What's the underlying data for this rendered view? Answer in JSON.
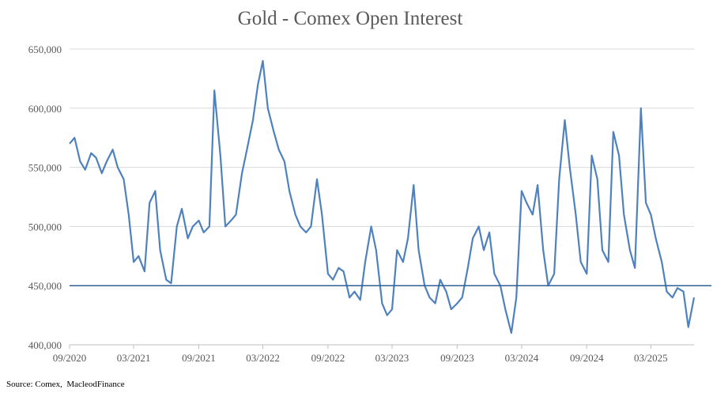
{
  "chart_data": {
    "type": "line",
    "title": "Gold - Comex Open Interest",
    "source": "Source: Comex,  MacleodFinance",
    "xlabel": "",
    "ylabel": "",
    "ylim": [
      400000,
      650000
    ],
    "yticks": [
      400000,
      450000,
      500000,
      550000,
      600000,
      650000
    ],
    "ytick_labels": [
      "400,000",
      "450,000",
      "500,000",
      "550,000",
      "600,000",
      "650,000"
    ],
    "xlim": [
      "2020-09",
      "2025-07"
    ],
    "xticks": [
      "2020-09",
      "2021-03",
      "2021-09",
      "2022-03",
      "2022-09",
      "2023-03",
      "2023-09",
      "2024-03",
      "2024-09",
      "2025-03"
    ],
    "xtick_labels": [
      "09/2020",
      "03/2021",
      "09/2021",
      "03/2022",
      "09/2022",
      "03/2023",
      "09/2023",
      "03/2024",
      "09/2024",
      "03/2025"
    ],
    "grid": "horizontal",
    "colors": {
      "line": "#4f81bd",
      "reference": "#2e6095",
      "grid": "#d9d9d9",
      "axis": "#bfbfbf",
      "tick_text": "#595959"
    },
    "reference_line": {
      "y": 450000
    },
    "series": [
      {
        "x": [
          "2020-09-01",
          "2020-09-15",
          "2020-10-01",
          "2020-10-15",
          "2020-11-01",
          "2020-11-15",
          "2020-12-01",
          "2020-12-15",
          "2021-01-01",
          "2021-01-15",
          "2021-02-01",
          "2021-02-15",
          "2021-03-01",
          "2021-03-15",
          "2021-04-01",
          "2021-04-15",
          "2021-05-01",
          "2021-05-15",
          "2021-06-01",
          "2021-06-15",
          "2021-07-01",
          "2021-07-15",
          "2021-08-01",
          "2021-08-15",
          "2021-09-01",
          "2021-09-15",
          "2021-10-01",
          "2021-10-15",
          "2021-11-01",
          "2021-11-15",
          "2021-12-01",
          "2021-12-15",
          "2022-01-01",
          "2022-01-15",
          "2022-02-01",
          "2022-02-15",
          "2022-03-01",
          "2022-03-15",
          "2022-04-01",
          "2022-04-15",
          "2022-05-01",
          "2022-05-15",
          "2022-06-01",
          "2022-06-15",
          "2022-07-01",
          "2022-07-15",
          "2022-08-01",
          "2022-08-15",
          "2022-09-01",
          "2022-09-15",
          "2022-10-01",
          "2022-10-15",
          "2022-11-01",
          "2022-11-15",
          "2022-12-01",
          "2022-12-15",
          "2023-01-01",
          "2023-01-15",
          "2023-02-01",
          "2023-02-15",
          "2023-03-01",
          "2023-03-15",
          "2023-04-01",
          "2023-04-15",
          "2023-05-01",
          "2023-05-15",
          "2023-06-01",
          "2023-06-15",
          "2023-07-01",
          "2023-07-15",
          "2023-08-01",
          "2023-08-15",
          "2023-09-01",
          "2023-09-15",
          "2023-10-01",
          "2023-10-15",
          "2023-11-01",
          "2023-11-15",
          "2023-12-01",
          "2023-12-15",
          "2024-01-01",
          "2024-01-15",
          "2024-02-01",
          "2024-02-15",
          "2024-03-01",
          "2024-03-15",
          "2024-04-01",
          "2024-04-15",
          "2024-05-01",
          "2024-05-15",
          "2024-06-01",
          "2024-06-15",
          "2024-07-01",
          "2024-07-15",
          "2024-08-01",
          "2024-08-15",
          "2024-09-01",
          "2024-09-15",
          "2024-10-01",
          "2024-10-15",
          "2024-11-01",
          "2024-11-15",
          "2024-12-01",
          "2024-12-15",
          "2025-01-01",
          "2025-01-15",
          "2025-02-01",
          "2025-02-15",
          "2025-03-01",
          "2025-03-15",
          "2025-04-01",
          "2025-04-15",
          "2025-05-01",
          "2025-05-15",
          "2025-06-01",
          "2025-06-15",
          "2025-07-01"
        ],
        "values": [
          570000,
          575000,
          555000,
          548000,
          562000,
          558000,
          545000,
          555000,
          565000,
          550000,
          540000,
          510000,
          470000,
          475000,
          462000,
          520000,
          530000,
          480000,
          455000,
          452000,
          500000,
          515000,
          490000,
          500000,
          505000,
          495000,
          500000,
          615000,
          560000,
          500000,
          505000,
          510000,
          545000,
          565000,
          590000,
          620000,
          640000,
          600000,
          580000,
          565000,
          555000,
          530000,
          510000,
          500000,
          495000,
          500000,
          540000,
          510000,
          460000,
          455000,
          465000,
          462000,
          440000,
          445000,
          438000,
          470000,
          500000,
          480000,
          435000,
          425000,
          430000,
          480000,
          470000,
          490000,
          535000,
          480000,
          450000,
          440000,
          435000,
          455000,
          445000,
          430000,
          435000,
          440000,
          465000,
          490000,
          500000,
          480000,
          495000,
          460000,
          450000,
          430000,
          410000,
          440000,
          530000,
          520000,
          510000,
          535000,
          480000,
          450000,
          460000,
          540000,
          590000,
          550000,
          510000,
          470000,
          460000,
          560000,
          540000,
          480000,
          470000,
          580000,
          560000,
          510000,
          480000,
          465000,
          600000,
          520000,
          510000,
          490000,
          470000,
          445000,
          440000,
          448000,
          445000,
          415000,
          440000
        ]
      }
    ]
  }
}
